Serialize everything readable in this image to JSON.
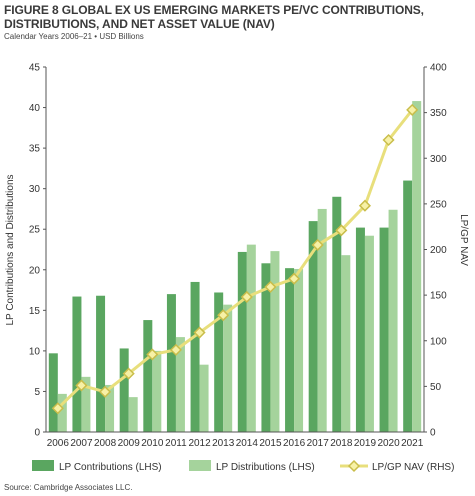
{
  "figure": {
    "title_line1": "FIGURE 8  GLOBAL EX US EMERGING MARKETS PE/VC CONTRIBUTIONS,",
    "title_line2": "DISTRIBUTIONS, AND NET ASSET VALUE (NAV)",
    "subtitle": "Calendar Years 2006–21 • USD Billions",
    "source": "Source: Cambridge Associates LLC."
  },
  "colors": {
    "contributions": "#5aa660",
    "distributions": "#a5d39c",
    "nav_line": "#e8df7c",
    "nav_marker_fill": "#f7f1a6",
    "nav_marker_stroke": "#c9bd4a",
    "axis": "#555555"
  },
  "chart_data": {
    "type": "bar",
    "categories": [
      "2006",
      "2007",
      "2008",
      "2009",
      "2010",
      "2011",
      "2012",
      "2013",
      "2014",
      "2015",
      "2016",
      "2017",
      "2018",
      "2019",
      "2020",
      "2021"
    ],
    "series": [
      {
        "name": "LP Contributions (LHS)",
        "type": "bar",
        "axis": "left",
        "values": [
          9.7,
          16.7,
          16.8,
          10.3,
          13.8,
          17.0,
          18.5,
          17.2,
          22.2,
          20.8,
          20.2,
          26.0,
          29.0,
          25.2,
          25.2,
          31.0
        ]
      },
      {
        "name": "LP Distributions (LHS)",
        "type": "bar",
        "axis": "left",
        "values": [
          4.7,
          6.8,
          5.8,
          4.3,
          10.0,
          11.7,
          8.3,
          15.7,
          23.1,
          22.3,
          20.1,
          27.5,
          21.8,
          24.2,
          27.4,
          40.8
        ]
      },
      {
        "name": "LP/GP NAV (RHS)",
        "type": "line",
        "axis": "right",
        "values": [
          26,
          51,
          44,
          64,
          85,
          90,
          109,
          128,
          148,
          159,
          168,
          205,
          221,
          248,
          320,
          353
        ]
      }
    ],
    "y_left": {
      "label": "LP Contributions and Distributions",
      "min": 0,
      "max": 45,
      "ticks": [
        0,
        5,
        10,
        15,
        20,
        25,
        30,
        35,
        40,
        45
      ]
    },
    "y_right": {
      "label": "LP/GP NAV",
      "min": 0,
      "max": 400,
      "ticks": [
        0,
        50,
        100,
        150,
        200,
        250,
        300,
        350,
        400
      ]
    },
    "grid": false,
    "legend_position": "bottom"
  }
}
